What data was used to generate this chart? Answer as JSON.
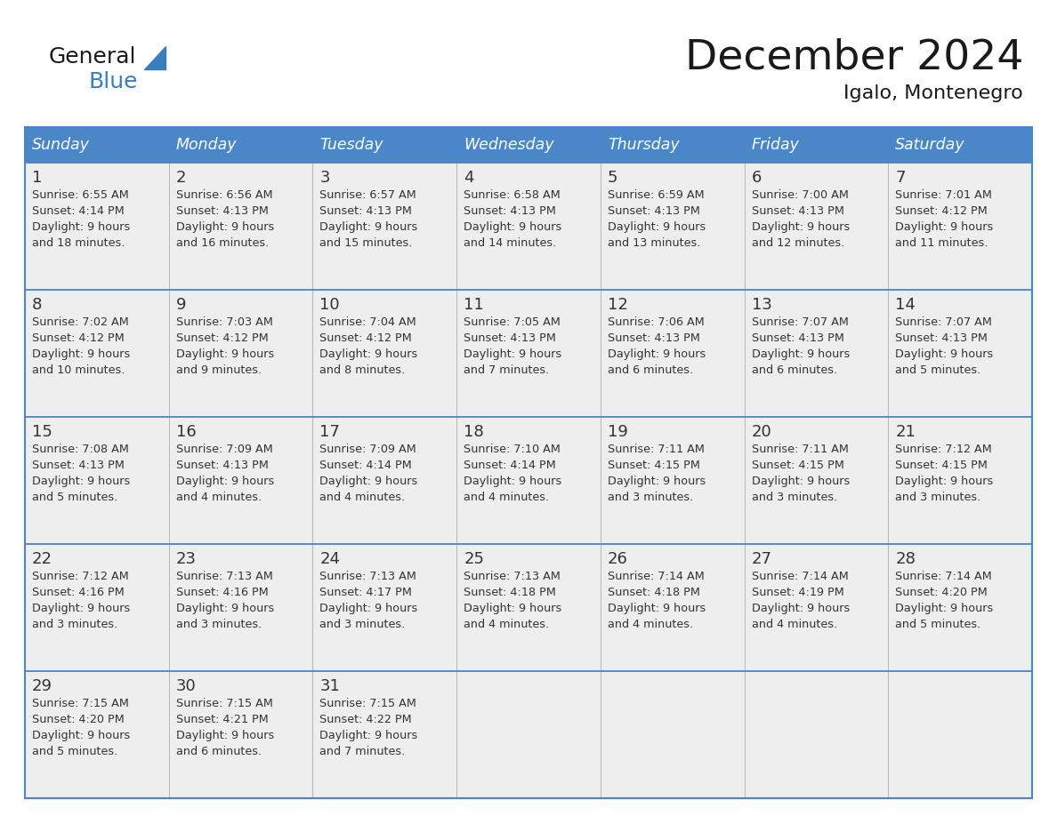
{
  "title": "December 2024",
  "subtitle": "Igalo, Montenegro",
  "days_of_week": [
    "Sunday",
    "Monday",
    "Tuesday",
    "Wednesday",
    "Thursday",
    "Friday",
    "Saturday"
  ],
  "header_bg": "#4A86C8",
  "header_text": "#FFFFFF",
  "cell_bg": "#EEEEEE",
  "border_color": "#4A86C8",
  "row_line_color": "#4A86C8",
  "col_line_color": "#BBBBBB",
  "day_num_color": "#333333",
  "text_color": "#333333",
  "title_color": "#1a1a1a",
  "logo_general_color": "#1a1a1a",
  "logo_blue_color": "#3A7EC0",
  "calendar_data": [
    [
      {
        "day": "1",
        "sunrise": "6:55 AM",
        "sunset": "4:14 PM",
        "daylight_line1": "Daylight: 9 hours",
        "daylight_line2": "and 18 minutes."
      },
      {
        "day": "2",
        "sunrise": "6:56 AM",
        "sunset": "4:13 PM",
        "daylight_line1": "Daylight: 9 hours",
        "daylight_line2": "and 16 minutes."
      },
      {
        "day": "3",
        "sunrise": "6:57 AM",
        "sunset": "4:13 PM",
        "daylight_line1": "Daylight: 9 hours",
        "daylight_line2": "and 15 minutes."
      },
      {
        "day": "4",
        "sunrise": "6:58 AM",
        "sunset": "4:13 PM",
        "daylight_line1": "Daylight: 9 hours",
        "daylight_line2": "and 14 minutes."
      },
      {
        "day": "5",
        "sunrise": "6:59 AM",
        "sunset": "4:13 PM",
        "daylight_line1": "Daylight: 9 hours",
        "daylight_line2": "and 13 minutes."
      },
      {
        "day": "6",
        "sunrise": "7:00 AM",
        "sunset": "4:13 PM",
        "daylight_line1": "Daylight: 9 hours",
        "daylight_line2": "and 12 minutes."
      },
      {
        "day": "7",
        "sunrise": "7:01 AM",
        "sunset": "4:12 PM",
        "daylight_line1": "Daylight: 9 hours",
        "daylight_line2": "and 11 minutes."
      }
    ],
    [
      {
        "day": "8",
        "sunrise": "7:02 AM",
        "sunset": "4:12 PM",
        "daylight_line1": "Daylight: 9 hours",
        "daylight_line2": "and 10 minutes."
      },
      {
        "day": "9",
        "sunrise": "7:03 AM",
        "sunset": "4:12 PM",
        "daylight_line1": "Daylight: 9 hours",
        "daylight_line2": "and 9 minutes."
      },
      {
        "day": "10",
        "sunrise": "7:04 AM",
        "sunset": "4:12 PM",
        "daylight_line1": "Daylight: 9 hours",
        "daylight_line2": "and 8 minutes."
      },
      {
        "day": "11",
        "sunrise": "7:05 AM",
        "sunset": "4:13 PM",
        "daylight_line1": "Daylight: 9 hours",
        "daylight_line2": "and 7 minutes."
      },
      {
        "day": "12",
        "sunrise": "7:06 AM",
        "sunset": "4:13 PM",
        "daylight_line1": "Daylight: 9 hours",
        "daylight_line2": "and 6 minutes."
      },
      {
        "day": "13",
        "sunrise": "7:07 AM",
        "sunset": "4:13 PM",
        "daylight_line1": "Daylight: 9 hours",
        "daylight_line2": "and 6 minutes."
      },
      {
        "day": "14",
        "sunrise": "7:07 AM",
        "sunset": "4:13 PM",
        "daylight_line1": "Daylight: 9 hours",
        "daylight_line2": "and 5 minutes."
      }
    ],
    [
      {
        "day": "15",
        "sunrise": "7:08 AM",
        "sunset": "4:13 PM",
        "daylight_line1": "Daylight: 9 hours",
        "daylight_line2": "and 5 minutes."
      },
      {
        "day": "16",
        "sunrise": "7:09 AM",
        "sunset": "4:13 PM",
        "daylight_line1": "Daylight: 9 hours",
        "daylight_line2": "and 4 minutes."
      },
      {
        "day": "17",
        "sunrise": "7:09 AM",
        "sunset": "4:14 PM",
        "daylight_line1": "Daylight: 9 hours",
        "daylight_line2": "and 4 minutes."
      },
      {
        "day": "18",
        "sunrise": "7:10 AM",
        "sunset": "4:14 PM",
        "daylight_line1": "Daylight: 9 hours",
        "daylight_line2": "and 4 minutes."
      },
      {
        "day": "19",
        "sunrise": "7:11 AM",
        "sunset": "4:15 PM",
        "daylight_line1": "Daylight: 9 hours",
        "daylight_line2": "and 3 minutes."
      },
      {
        "day": "20",
        "sunrise": "7:11 AM",
        "sunset": "4:15 PM",
        "daylight_line1": "Daylight: 9 hours",
        "daylight_line2": "and 3 minutes."
      },
      {
        "day": "21",
        "sunrise": "7:12 AM",
        "sunset": "4:15 PM",
        "daylight_line1": "Daylight: 9 hours",
        "daylight_line2": "and 3 minutes."
      }
    ],
    [
      {
        "day": "22",
        "sunrise": "7:12 AM",
        "sunset": "4:16 PM",
        "daylight_line1": "Daylight: 9 hours",
        "daylight_line2": "and 3 minutes."
      },
      {
        "day": "23",
        "sunrise": "7:13 AM",
        "sunset": "4:16 PM",
        "daylight_line1": "Daylight: 9 hours",
        "daylight_line2": "and 3 minutes."
      },
      {
        "day": "24",
        "sunrise": "7:13 AM",
        "sunset": "4:17 PM",
        "daylight_line1": "Daylight: 9 hours",
        "daylight_line2": "and 3 minutes."
      },
      {
        "day": "25",
        "sunrise": "7:13 AM",
        "sunset": "4:18 PM",
        "daylight_line1": "Daylight: 9 hours",
        "daylight_line2": "and 4 minutes."
      },
      {
        "day": "26",
        "sunrise": "7:14 AM",
        "sunset": "4:18 PM",
        "daylight_line1": "Daylight: 9 hours",
        "daylight_line2": "and 4 minutes."
      },
      {
        "day": "27",
        "sunrise": "7:14 AM",
        "sunset": "4:19 PM",
        "daylight_line1": "Daylight: 9 hours",
        "daylight_line2": "and 4 minutes."
      },
      {
        "day": "28",
        "sunrise": "7:14 AM",
        "sunset": "4:20 PM",
        "daylight_line1": "Daylight: 9 hours",
        "daylight_line2": "and 5 minutes."
      }
    ],
    [
      {
        "day": "29",
        "sunrise": "7:15 AM",
        "sunset": "4:20 PM",
        "daylight_line1": "Daylight: 9 hours",
        "daylight_line2": "and 5 minutes."
      },
      {
        "day": "30",
        "sunrise": "7:15 AM",
        "sunset": "4:21 PM",
        "daylight_line1": "Daylight: 9 hours",
        "daylight_line2": "and 6 minutes."
      },
      {
        "day": "31",
        "sunrise": "7:15 AM",
        "sunset": "4:22 PM",
        "daylight_line1": "Daylight: 9 hours",
        "daylight_line2": "and 7 minutes."
      },
      null,
      null,
      null,
      null
    ]
  ]
}
